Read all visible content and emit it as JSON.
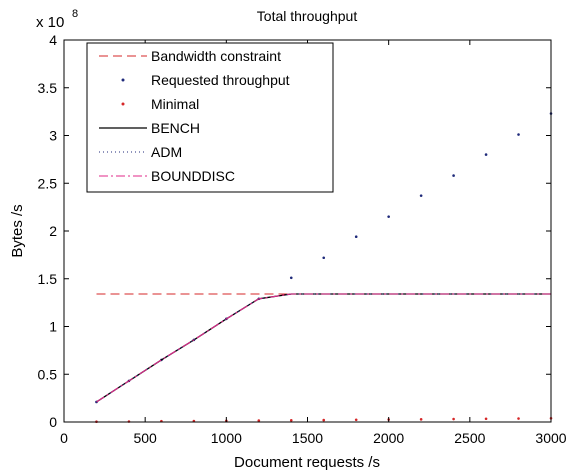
{
  "chart_data": {
    "type": "line",
    "title": "Total throughput",
    "xlabel": "Document requests /s",
    "ylabel": "Bytes /s",
    "y_multiplier": "x 10",
    "y_exponent": "8",
    "xlim": [
      0,
      3000
    ],
    "ylim": [
      0,
      4
    ],
    "grid": false,
    "legend_position": "top-left",
    "xticks": [
      0,
      500,
      1000,
      1500,
      2000,
      2500,
      3000
    ],
    "yticks": [
      0,
      0.5,
      1,
      1.5,
      2,
      2.5,
      3,
      3.5,
      4
    ],
    "xtick_labels": [
      "0",
      "500",
      "1000",
      "1500",
      "2000",
      "2500",
      "3000"
    ],
    "ytick_labels": [
      "0",
      "0.5",
      "1",
      "1.5",
      "2",
      "2.5",
      "3",
      "3.5",
      "4"
    ],
    "series": [
      {
        "name": "Bandwidth constraint",
        "style": "dashed",
        "color": "#d62728",
        "x": [
          200,
          3000
        ],
        "y": [
          1.34,
          1.34
        ]
      },
      {
        "name": "Requested throughput",
        "style": "dots",
        "color": "#1f2a7a",
        "x": [
          200,
          400,
          600,
          800,
          1000,
          1200,
          1400,
          1600,
          1800,
          2000,
          2200,
          2400,
          2600,
          2800,
          3000
        ],
        "y": [
          0.21,
          0.43,
          0.65,
          0.86,
          1.08,
          1.29,
          1.51,
          1.72,
          1.94,
          2.15,
          2.37,
          2.58,
          2.8,
          3.01,
          3.23
        ]
      },
      {
        "name": "Minimal",
        "style": "dots",
        "color": "#d62728",
        "x": [
          200,
          400,
          600,
          800,
          1000,
          1200,
          1400,
          1600,
          1800,
          2000,
          2200,
          2400,
          2600,
          2800,
          3000
        ],
        "y": [
          0.003,
          0.005,
          0.008,
          0.01,
          0.012,
          0.015,
          0.018,
          0.02,
          0.023,
          0.026,
          0.028,
          0.031,
          0.034,
          0.036,
          0.039
        ]
      },
      {
        "name": "BENCH",
        "style": "solid",
        "color": "#000000",
        "x": [
          200,
          400,
          600,
          800,
          1000,
          1200,
          1400,
          1600,
          1800,
          2000,
          2200,
          2400,
          2600,
          2800,
          3000
        ],
        "y": [
          0.21,
          0.43,
          0.65,
          0.86,
          1.08,
          1.29,
          1.34,
          1.34,
          1.34,
          1.34,
          1.34,
          1.34,
          1.34,
          1.34,
          1.34
        ]
      },
      {
        "name": "ADM",
        "style": "dotted",
        "color": "#1f2a7a",
        "x": [
          200,
          400,
          600,
          800,
          1000,
          1200,
          1400,
          1600,
          1800,
          2000,
          2200,
          2400,
          2600,
          2800,
          3000
        ],
        "y": [
          0.21,
          0.43,
          0.65,
          0.86,
          1.08,
          1.29,
          1.34,
          1.34,
          1.34,
          1.34,
          1.34,
          1.34,
          1.34,
          1.34,
          1.34
        ]
      },
      {
        "name": "BOUNDDISC",
        "style": "dashdot",
        "color": "#e0288a",
        "x": [
          200,
          400,
          600,
          800,
          1000,
          1200,
          1400,
          1600,
          1800,
          2000,
          2200,
          2400,
          2600,
          2800,
          3000
        ],
        "y": [
          0.21,
          0.43,
          0.65,
          0.86,
          1.08,
          1.29,
          1.34,
          1.34,
          1.34,
          1.34,
          1.34,
          1.34,
          1.34,
          1.34,
          1.34
        ]
      }
    ]
  }
}
